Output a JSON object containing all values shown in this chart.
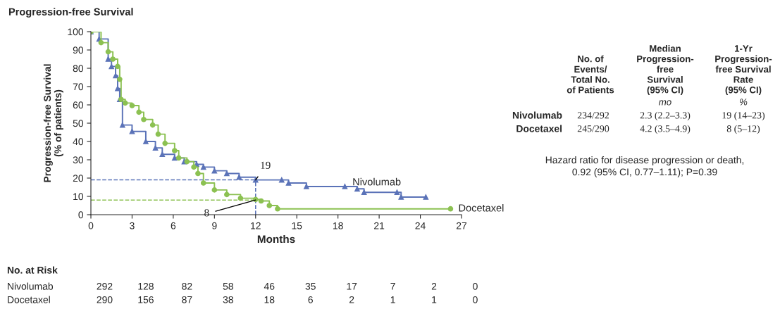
{
  "chart_data": {
    "type": "step",
    "title": "Progression-free Survival",
    "xlabel": "Months",
    "ylabel": "Progression-free Survival\n(% of patients)",
    "xlim": [
      0,
      27
    ],
    "xticks": [
      0,
      3,
      6,
      9,
      12,
      15,
      18,
      21,
      24,
      27
    ],
    "ylim": [
      0,
      100
    ],
    "yticks": [
      0,
      10,
      20,
      30,
      40,
      50,
      60,
      70,
      80,
      90,
      100
    ],
    "grid": false,
    "legend": false,
    "line_style": "solid",
    "series": [
      {
        "name": "Nivolumab",
        "color": "#5b73b8",
        "marker": "triangle",
        "x": [
          0,
          0.6,
          1.26,
          1.5,
          1.8,
          1.95,
          2.1,
          2.3,
          3,
          4,
          4.7,
          5.2,
          6.1,
          6.8,
          7.7,
          8.2,
          9,
          9.9,
          10.8,
          12,
          13.9,
          14.4,
          15.7,
          18.5,
          19.4,
          19.9,
          22.3,
          22.6,
          24.4
        ],
        "values": [
          100,
          96,
          85,
          81,
          76,
          69,
          63,
          49,
          45.5,
          40,
          36.5,
          33,
          31,
          29,
          27.5,
          26,
          24,
          22.5,
          20.5,
          19,
          19,
          17.3,
          15.4,
          15.4,
          14.1,
          12.2,
          12.2,
          9.6,
          9.6
        ]
      },
      {
        "name": "Docetaxel",
        "color": "#8cc152",
        "marker": "circle",
        "x": [
          0,
          0.74,
          1.26,
          1.6,
          1.95,
          2.1,
          2.2,
          2.5,
          3,
          3.5,
          3.85,
          4.5,
          4.9,
          5.4,
          6.1,
          6.4,
          7,
          7.5,
          7.8,
          8.2,
          9,
          9.9,
          10.9,
          12,
          12.4,
          13,
          13.6,
          26.2
        ],
        "values": [
          100,
          94,
          89,
          85,
          81,
          74,
          63,
          61,
          59.6,
          56,
          52,
          49,
          44,
          39,
          35,
          31,
          29,
          26,
          22.5,
          17.3,
          13.5,
          11,
          9,
          8.3,
          7.5,
          5,
          3.2,
          3.2
        ]
      }
    ],
    "ref_lines": [
      {
        "axis": "y",
        "value": 19,
        "color": "#5b73b8",
        "line_style": "dashed"
      },
      {
        "axis": "y",
        "value": 8,
        "color": "#8cc152",
        "line_style": "dashed"
      },
      {
        "axis": "x",
        "value": 12,
        "color": "#5b73b8",
        "line_style": "dashed"
      }
    ],
    "annotations": [
      {
        "text": "19",
        "x": 12,
        "y": 19
      },
      {
        "text": "8",
        "x": 12,
        "y": 8
      },
      "No. of\nEvents/\nTotal No.\nof Patients",
      "Median\nProgression-\nfree\nSurvival\n(95% CI)",
      "1-Yr\nProgression-\nfree Survival\nRate\n(95% CI)",
      "mo",
      "%",
      "Nivolumab",
      "234/292",
      "2.3 (2.2–3.3)",
      "19 (14–23)",
      "Docetaxel",
      "245/290",
      "4.2 (3.5–4.9)",
      "8 (5–12)",
      "Hazard ratio for disease progression or death,\n0.92 (95% CI, 0.77–1.11); P=0.39",
      "No. at Risk",
      "Nivolumab",
      "292",
      "128",
      "82",
      "58",
      "46",
      "35",
      "17",
      "7",
      "2",
      "0",
      "Docetaxel",
      "290",
      "156",
      "87",
      "38",
      "18",
      "6",
      "2",
      "1",
      "1",
      "0"
    ]
  }
}
